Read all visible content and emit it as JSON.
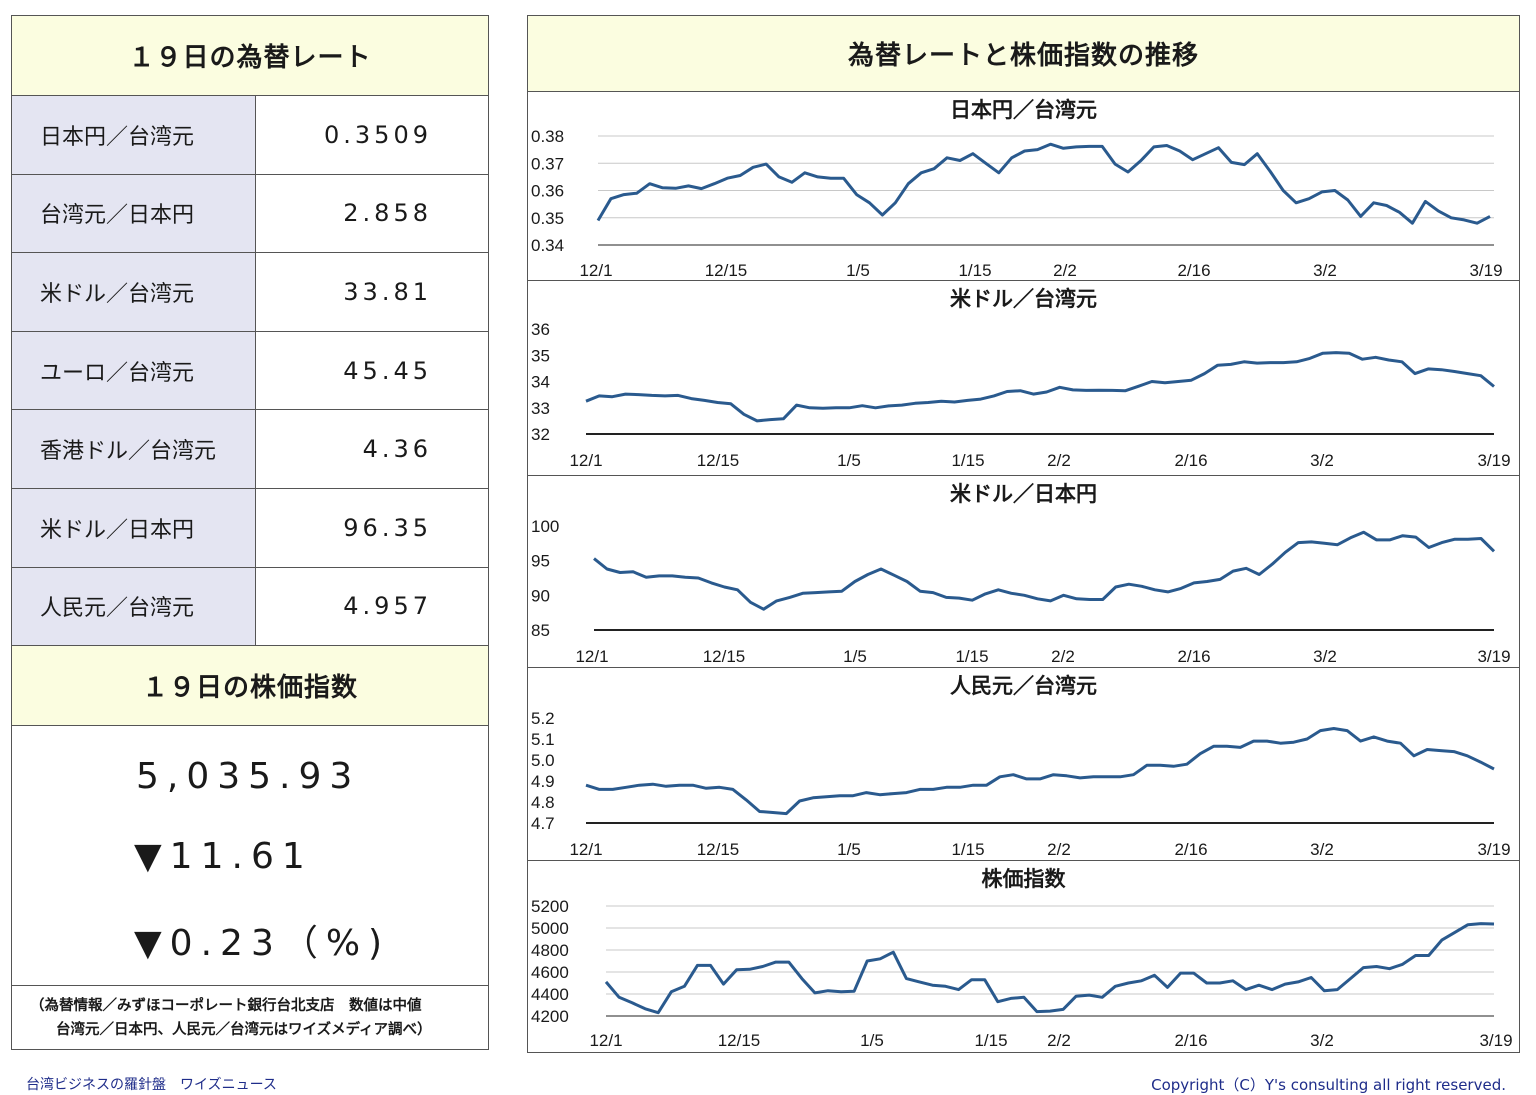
{
  "rates": {
    "title": "１９日の為替レート",
    "rows": [
      {
        "label": "日本円／台湾元",
        "value": "0.3509"
      },
      {
        "label": "台湾元／日本円",
        "value": "2.858"
      },
      {
        "label": "米ドル／台湾元",
        "value": "33.81"
      },
      {
        "label": "ユーロ／台湾元",
        "value": "45.45"
      },
      {
        "label": "香港ドル／台湾元",
        "value": "4.36"
      },
      {
        "label": "米ドル／日本円",
        "value": "96.35"
      },
      {
        "label": "人民元／台湾元",
        "value": "4.957"
      }
    ]
  },
  "stock": {
    "title": "１９日の株価指数",
    "index": "5,035.93",
    "change": "▼11.61",
    "change_pct": "▼0.23（%)"
  },
  "note": {
    "line1": "（為替情報／みずほコーポレート銀行台北支店　数値は中値",
    "line2": "台湾元／日本円、人民元／台湾元はワイズメディア調べ）"
  },
  "charts_title": "為替レートと株価指数の推移",
  "footer": {
    "left": "台湾ビジネスの羅針盤　ワイズニュース",
    "right": "Copyright（C）Y's consulting all right reserved."
  },
  "line_color": "#2a5a8e",
  "chart_data": [
    {
      "type": "line",
      "title": "日本円／台湾元",
      "x_ticks": [
        "12/1",
        "12/15",
        "1/5",
        "1/15",
        "2/2",
        "2/16",
        "3/2",
        "3/19"
      ],
      "y_ticks": [
        "0.38",
        "0.37",
        "0.36",
        "0.35",
        "0.34"
      ],
      "ylim": [
        0.34,
        0.38
      ],
      "grid": true,
      "values": [
        0.349,
        0.357,
        0.3585,
        0.359,
        0.3625,
        0.361,
        0.3608,
        0.3617,
        0.3607,
        0.3625,
        0.3645,
        0.3655,
        0.3685,
        0.3697,
        0.365,
        0.363,
        0.3665,
        0.365,
        0.3645,
        0.3645,
        0.3585,
        0.3555,
        0.351,
        0.3555,
        0.3625,
        0.3665,
        0.368,
        0.372,
        0.371,
        0.3735,
        0.37,
        0.3665,
        0.372,
        0.3745,
        0.375,
        0.377,
        0.3755,
        0.376,
        0.3762,
        0.3762,
        0.3697,
        0.3668,
        0.371,
        0.376,
        0.3765,
        0.3745,
        0.3713,
        0.3735,
        0.3757,
        0.3703,
        0.3695,
        0.3735,
        0.367,
        0.36,
        0.3555,
        0.357,
        0.3595,
        0.36,
        0.3565,
        0.3505,
        0.3555,
        0.3545,
        0.352,
        0.348,
        0.356,
        0.3525,
        0.35,
        0.3492,
        0.348,
        0.3505
      ]
    },
    {
      "type": "line",
      "title": "米ドル／台湾元",
      "x_ticks": [
        "12/1",
        "12/15",
        "1/5",
        "1/15",
        "2/2",
        "2/16",
        "3/2",
        "3/19"
      ],
      "y_ticks": [
        "36",
        "35",
        "34",
        "33",
        "32"
      ],
      "ylim": [
        32,
        36
      ],
      "grid": false,
      "values": [
        33.25,
        33.45,
        33.42,
        33.52,
        33.5,
        33.47,
        33.45,
        33.47,
        33.35,
        33.28,
        33.2,
        33.15,
        32.75,
        32.5,
        32.55,
        32.58,
        33.1,
        33.0,
        32.98,
        33.0,
        33.0,
        33.08,
        33.0,
        33.07,
        33.1,
        33.17,
        33.2,
        33.25,
        33.22,
        33.28,
        33.33,
        33.45,
        33.62,
        33.65,
        33.52,
        33.6,
        33.78,
        33.68,
        33.66,
        33.67,
        33.66,
        33.65,
        33.82,
        34.0,
        33.95,
        34.0,
        34.05,
        34.3,
        34.62,
        34.65,
        34.75,
        34.7,
        34.72,
        34.72,
        34.75,
        34.88,
        35.08,
        35.1,
        35.08,
        34.85,
        34.92,
        34.82,
        34.75,
        34.3,
        34.48,
        34.45,
        34.38,
        34.3,
        34.22,
        33.81
      ]
    },
    {
      "type": "line",
      "title": "米ドル／日本円",
      "x_ticks": [
        "12/1",
        "12/15",
        "1/5",
        "1/15",
        "2/2",
        "2/16",
        "3/2",
        "3/19"
      ],
      "y_ticks": [
        "100",
        "95",
        "90",
        "85"
      ],
      "ylim": [
        85,
        100
      ],
      "grid": false,
      "values": [
        95.3,
        93.8,
        93.3,
        93.4,
        92.6,
        92.8,
        92.8,
        92.6,
        92.5,
        91.8,
        91.2,
        90.8,
        89.0,
        88.0,
        89.2,
        89.7,
        90.3,
        90.4,
        90.5,
        90.6,
        92.0,
        93.0,
        93.8,
        92.9,
        92.0,
        90.6,
        90.4,
        89.7,
        89.6,
        89.3,
        90.2,
        90.8,
        90.3,
        90.0,
        89.5,
        89.2,
        90.0,
        89.5,
        89.4,
        89.4,
        91.2,
        91.6,
        91.3,
        90.8,
        90.5,
        91.0,
        91.8,
        92.0,
        92.3,
        93.5,
        93.9,
        93.0,
        94.5,
        96.2,
        97.6,
        97.7,
        97.5,
        97.3,
        98.3,
        99.1,
        98.0,
        98.0,
        98.6,
        98.4,
        96.9,
        97.6,
        98.1,
        98.1,
        98.2,
        96.35
      ]
    },
    {
      "type": "line",
      "title": "人民元／台湾元",
      "x_ticks": [
        "12/1",
        "12/15",
        "1/5",
        "1/15",
        "2/2",
        "2/16",
        "3/2",
        "3/19"
      ],
      "y_ticks": [
        "5.2",
        "5.1",
        "5.0",
        "4.9",
        "4.8",
        "4.7"
      ],
      "ylim": [
        4.7,
        5.2
      ],
      "grid": false,
      "values": [
        4.88,
        4.86,
        4.86,
        4.87,
        4.88,
        4.885,
        4.875,
        4.88,
        4.88,
        4.865,
        4.87,
        4.86,
        4.81,
        4.755,
        4.75,
        4.745,
        4.805,
        4.82,
        4.825,
        4.83,
        4.83,
        4.845,
        4.835,
        4.84,
        4.845,
        4.86,
        4.86,
        4.87,
        4.87,
        4.88,
        4.88,
        4.92,
        4.93,
        4.91,
        4.91,
        4.93,
        4.925,
        4.915,
        4.92,
        4.92,
        4.92,
        4.93,
        4.975,
        4.975,
        4.97,
        4.98,
        5.03,
        5.065,
        5.065,
        5.06,
        5.09,
        5.09,
        5.08,
        5.085,
        5.1,
        5.14,
        5.15,
        5.14,
        5.09,
        5.11,
        5.09,
        5.08,
        5.02,
        5.05,
        5.045,
        5.04,
        5.02,
        4.99,
        4.957
      ]
    },
    {
      "type": "line",
      "title": "株価指数",
      "x_ticks": [
        "12/1",
        "12/15",
        "1/5",
        "1/15",
        "2/2",
        "2/16",
        "3/2",
        "3/19"
      ],
      "y_ticks": [
        "5200",
        "5000",
        "4800",
        "4600",
        "4400",
        "4200"
      ],
      "ylim": [
        4200,
        5200
      ],
      "grid": true,
      "values": [
        4510,
        4370,
        4320,
        4265,
        4230,
        4420,
        4470,
        4660,
        4660,
        4490,
        4620,
        4625,
        4650,
        4690,
        4690,
        4540,
        4410,
        4430,
        4420,
        4425,
        4700,
        4720,
        4780,
        4540,
        4510,
        4480,
        4470,
        4440,
        4530,
        4530,
        4330,
        4360,
        4370,
        4240,
        4245,
        4260,
        4380,
        4390,
        4370,
        4470,
        4500,
        4520,
        4570,
        4460,
        4590,
        4590,
        4500,
        4500,
        4520,
        4440,
        4480,
        4440,
        4490,
        4510,
        4550,
        4430,
        4440,
        4540,
        4640,
        4650,
        4630,
        4670,
        4750,
        4750,
        4890,
        4960,
        5030,
        5040,
        5035.93
      ]
    }
  ]
}
